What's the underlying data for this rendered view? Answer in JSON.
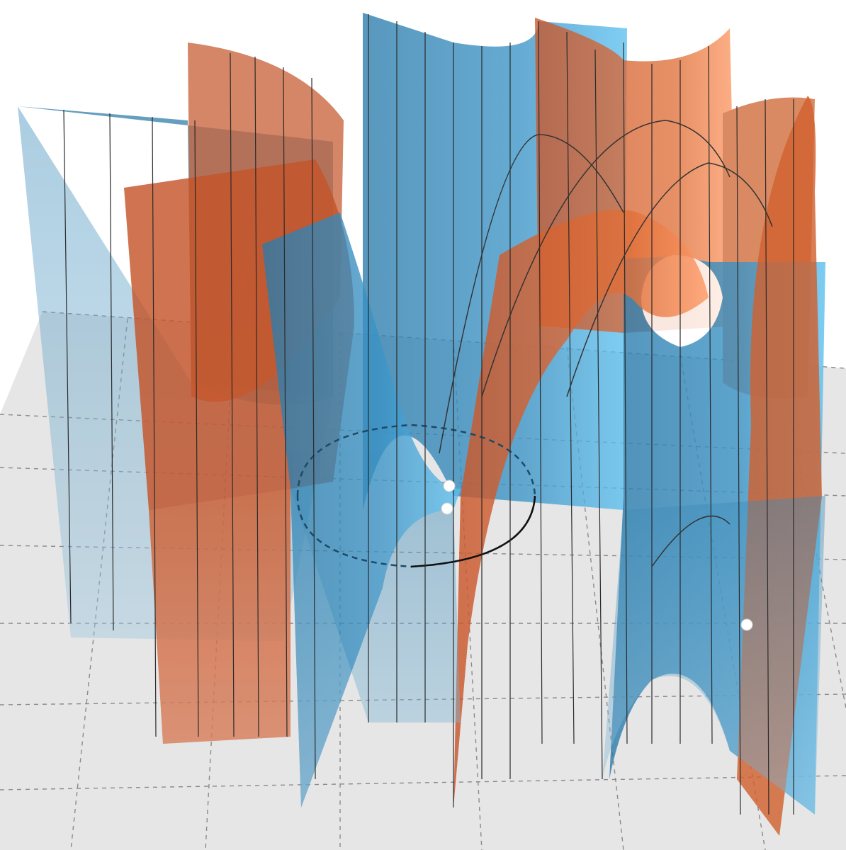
{
  "scene": {
    "description_visible_text": "",
    "colors": {
      "background": "#ffffff",
      "floor": "#e6e6e6",
      "floor_grid": "#7a7a7a",
      "surface_blue": "#2f86b8",
      "surface_blue_light": "#5cc0f0",
      "surface_orange": "#d4622e",
      "surface_orange_light": "#ff9a66",
      "ruling_line": "#333333",
      "marker_point": "#ffffff"
    },
    "surface_families": [
      "blue",
      "orange"
    ],
    "marker_point_count": 3,
    "floor_circle": "dashed-and-solid"
  }
}
